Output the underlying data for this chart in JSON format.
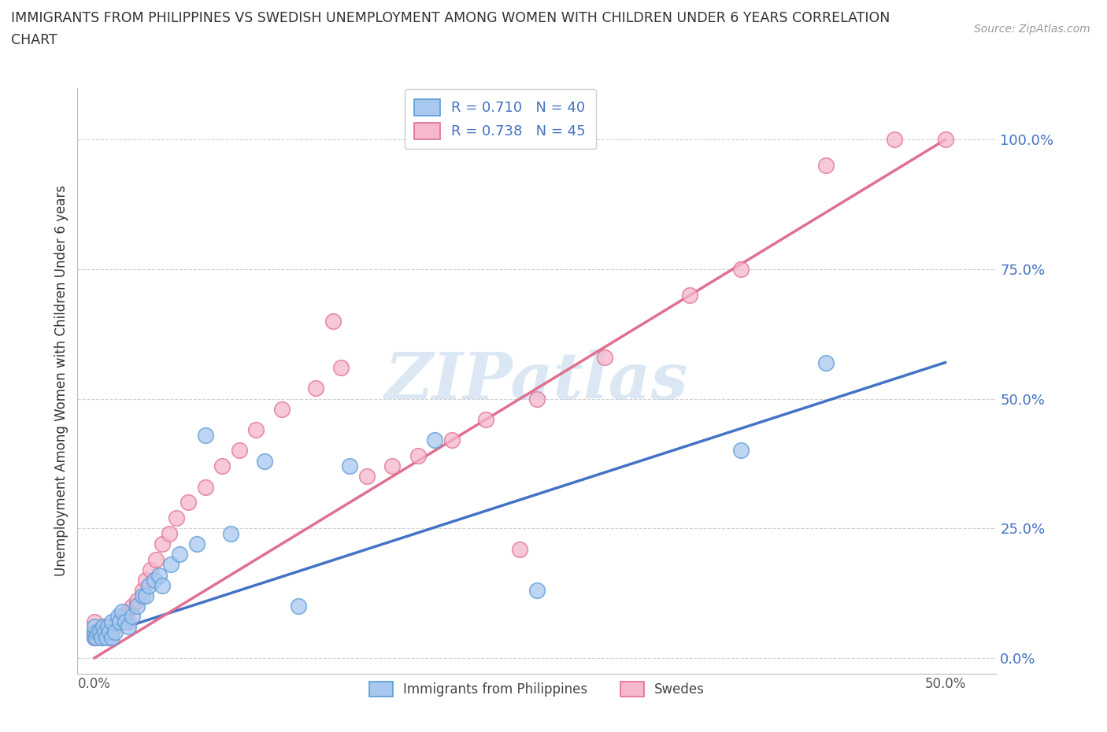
{
  "title_line1": "IMMIGRANTS FROM PHILIPPINES VS SWEDISH UNEMPLOYMENT AMONG WOMEN WITH CHILDREN UNDER 6 YEARS CORRELATION",
  "title_line2": "CHART",
  "source_text": "Source: ZipAtlas.com",
  "ylabel": "Unemployment Among Women with Children Under 6 years",
  "xlim": [
    -0.01,
    0.53
  ],
  "ylim": [
    -0.03,
    1.1
  ],
  "yticks": [
    0.0,
    0.25,
    0.5,
    0.75,
    1.0
  ],
  "ytick_labels": [
    "0.0%",
    "25.0%",
    "50.0%",
    "75.0%",
    "100.0%"
  ],
  "xticks": [
    0.0,
    0.5
  ],
  "xtick_labels": [
    "0.0%",
    "50.0%"
  ],
  "background_color": "#ffffff",
  "grid_color": "#d0d0d0",
  "watermark": "ZIPatlas",
  "legend_r1": "R = 0.710",
  "legend_n1": "N = 40",
  "legend_r2": "R = 0.738",
  "legend_n2": "N = 45",
  "color_blue_face": "#A8C8F0",
  "color_blue_edge": "#5B9BD5",
  "color_pink_face": "#F5B8CC",
  "color_pink_edge": "#E07090",
  "color_blue_text": "#4472C4",
  "color_line_blue": "#4472C4",
  "color_line_pink": "#E07090",
  "scatter_blue_x": [
    0.0,
    0.0,
    0.0,
    0.001,
    0.002,
    0.003,
    0.004,
    0.005,
    0.006,
    0.007,
    0.008,
    0.009,
    0.01,
    0.01,
    0.012,
    0.014,
    0.015,
    0.016,
    0.018,
    0.02,
    0.022,
    0.025,
    0.028,
    0.03,
    0.032,
    0.035,
    0.038,
    0.04,
    0.045,
    0.05,
    0.06,
    0.065,
    0.08,
    0.1,
    0.12,
    0.15,
    0.2,
    0.26,
    0.38,
    0.43
  ],
  "scatter_blue_y": [
    0.04,
    0.05,
    0.06,
    0.04,
    0.05,
    0.05,
    0.04,
    0.06,
    0.05,
    0.04,
    0.06,
    0.05,
    0.04,
    0.07,
    0.05,
    0.08,
    0.07,
    0.09,
    0.07,
    0.06,
    0.08,
    0.1,
    0.12,
    0.12,
    0.14,
    0.15,
    0.16,
    0.14,
    0.18,
    0.2,
    0.22,
    0.43,
    0.24,
    0.38,
    0.1,
    0.37,
    0.42,
    0.13,
    0.4,
    0.57
  ],
  "scatter_pink_x": [
    0.0,
    0.0,
    0.0,
    0.002,
    0.004,
    0.005,
    0.007,
    0.009,
    0.01,
    0.012,
    0.015,
    0.017,
    0.019,
    0.02,
    0.022,
    0.025,
    0.028,
    0.03,
    0.033,
    0.036,
    0.04,
    0.044,
    0.048,
    0.055,
    0.065,
    0.075,
    0.085,
    0.095,
    0.11,
    0.13,
    0.145,
    0.16,
    0.175,
    0.19,
    0.21,
    0.23,
    0.26,
    0.3,
    0.14,
    0.25,
    0.35,
    0.38,
    0.43,
    0.47,
    0.5
  ],
  "scatter_pink_y": [
    0.04,
    0.05,
    0.07,
    0.05,
    0.04,
    0.06,
    0.05,
    0.04,
    0.06,
    0.06,
    0.07,
    0.08,
    0.09,
    0.07,
    0.1,
    0.11,
    0.13,
    0.15,
    0.17,
    0.19,
    0.22,
    0.24,
    0.27,
    0.3,
    0.33,
    0.37,
    0.4,
    0.44,
    0.48,
    0.52,
    0.56,
    0.35,
    0.37,
    0.39,
    0.42,
    0.46,
    0.5,
    0.58,
    0.65,
    0.21,
    0.7,
    0.75,
    0.95,
    1.0,
    1.0
  ],
  "line_blue_x0": 0.0,
  "line_blue_y0": 0.04,
  "line_blue_x1": 0.5,
  "line_blue_y1": 0.57,
  "line_pink_x0": 0.0,
  "line_pink_y0": 0.0,
  "line_pink_x1": 0.5,
  "line_pink_y1": 1.0
}
